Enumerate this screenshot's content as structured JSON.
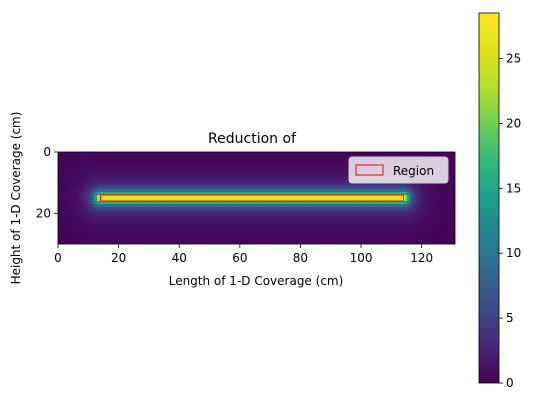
{
  "chart_data": {
    "type": "heatmap",
    "title": "Reduction of",
    "xlabel": "Length of 1-D Coverage (cm)",
    "ylabel": "Height of 1-D Coverage (cm)",
    "xlim": [
      0,
      131
    ],
    "ylim": [
      30,
      0
    ],
    "xticks": [
      "0",
      "20",
      "40",
      "60",
      "80",
      "100",
      "120"
    ],
    "yticks": [
      "0",
      "20"
    ],
    "colormap": "viridis",
    "colorbar": {
      "min": 0,
      "max": 28.5,
      "ticks": [
        "0",
        "5",
        "10",
        "15",
        "20",
        "25"
      ]
    },
    "field": {
      "description_of_shape": "line source",
      "line_x": [
        14,
        114
      ],
      "line_y": 15,
      "peak": 28.5
    },
    "region": {
      "x": [
        14,
        114
      ],
      "y": [
        14,
        16
      ],
      "color": "#ff0000"
    },
    "legend": {
      "position": "upper right",
      "entries": [
        "Region"
      ]
    }
  }
}
